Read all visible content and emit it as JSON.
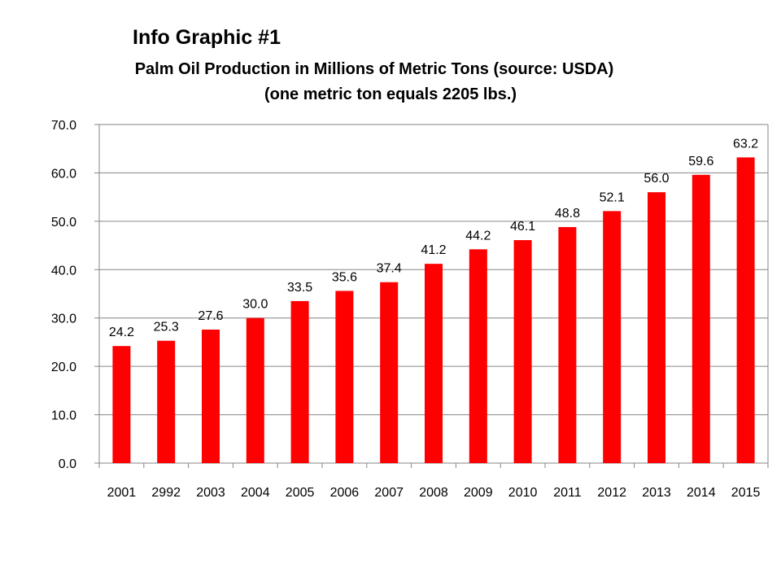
{
  "heading": "Info Graphic #1",
  "title_line1": "Palm Oil Production in Millions of Metric Tons (source: USDA)",
  "title_line2": "(one metric ton equals 2205 lbs.)",
  "colors": {
    "bar": "#ff0000",
    "grid": "#868686",
    "axis": "#868686"
  },
  "chart_data": {
    "type": "bar",
    "title": "Palm Oil Production in Millions of Metric Tons (source: USDA)",
    "subtitle": "(one metric ton equals 2205 lbs.)",
    "categories": [
      "2001",
      "2992",
      "2003",
      "2004",
      "2005",
      "2006",
      "2007",
      "2008",
      "2009",
      "2010",
      "2011",
      "2012",
      "2013",
      "2014",
      "2015"
    ],
    "values": [
      24.2,
      25.3,
      27.6,
      30.0,
      33.5,
      35.6,
      37.4,
      41.2,
      44.2,
      46.1,
      48.8,
      52.1,
      56.0,
      59.6,
      63.2
    ],
    "data_labels": [
      "24.2",
      "25.3",
      "27.6",
      "30.0",
      "33.5",
      "35.6",
      "37.4",
      "41.2",
      "44.2",
      "46.1",
      "48.8",
      "52.1",
      "56.0",
      "59.6",
      "63.2"
    ],
    "y_ticks": [
      "0.0",
      "10.0",
      "20.0",
      "30.0",
      "40.0",
      "50.0",
      "60.0",
      "70.0"
    ],
    "ylim": [
      0,
      70
    ],
    "xlabel": "",
    "ylabel": "",
    "grid": true,
    "legend": "none"
  }
}
